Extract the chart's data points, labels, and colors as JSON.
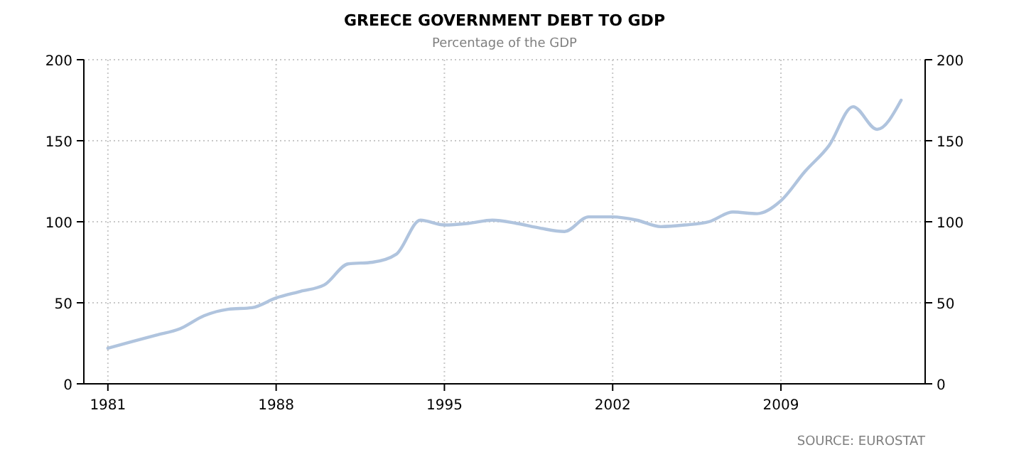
{
  "chart_data": {
    "type": "line",
    "title": "GREECE GOVERNMENT DEBT TO GDP",
    "subtitle": "Percentage of the GDP",
    "x": [
      1981,
      1982,
      1983,
      1984,
      1985,
      1986,
      1987,
      1988,
      1989,
      1990,
      1991,
      1992,
      1993,
      1994,
      1995,
      1996,
      1997,
      1998,
      1999,
      2000,
      2001,
      2002,
      2003,
      2004,
      2005,
      2006,
      2007,
      2008,
      2009,
      2010,
      2011,
      2012,
      2013,
      2014
    ],
    "series": [
      {
        "color": "#b0c4de",
        "values": [
          22,
          26,
          30,
          34,
          42,
          46,
          47,
          53,
          57,
          61,
          74,
          75,
          80,
          101,
          98,
          99,
          101,
          99,
          96,
          94,
          103,
          103,
          101,
          97,
          98,
          100,
          106,
          105,
          113,
          131,
          147,
          171,
          157,
          175
        ]
      }
    ],
    "xlim": [
      1980,
      2015
    ],
    "xticks": [
      1981,
      1988,
      1995,
      2002,
      2009
    ],
    "ylim": [
      0,
      200
    ],
    "yticks": [
      0,
      50,
      100,
      150,
      200
    ],
    "y2lim": [
      0,
      200
    ],
    "y2ticks": [
      0,
      50,
      100,
      150,
      200
    ],
    "grid": true,
    "line_style": "solid",
    "marker": "none",
    "annotations": [
      "SOURCE: EUROSTAT"
    ]
  }
}
